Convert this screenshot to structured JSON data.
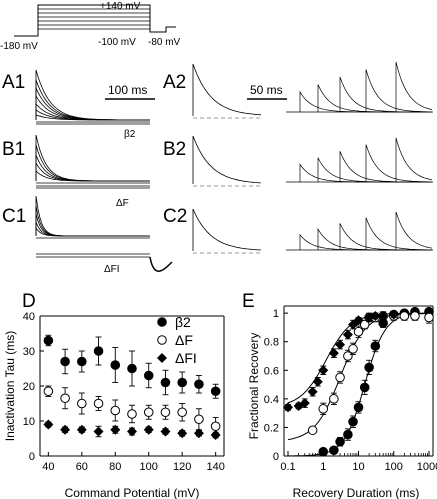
{
  "protocol": {
    "labels": [
      "+140 mV",
      "-180 mV",
      "-100 mV",
      "-80 mV"
    ]
  },
  "traces": {
    "panel_labels": [
      "A1",
      "A2",
      "B1",
      "B2",
      "C1",
      "C2"
    ],
    "scale_bars": {
      "left": "100 ms",
      "right": "50 ms"
    },
    "condition_labels": [
      "β2",
      "ΔF",
      "ΔFI"
    ]
  },
  "colors": {
    "ink": "#000000",
    "dash": "#999999"
  },
  "chart_data": [
    {
      "type": "scatter",
      "panel": "D",
      "xlabel": "Command Potential (mV)",
      "ylabel": "Inactivation Tau (ms)",
      "xlim": [
        35,
        145
      ],
      "ylim": [
        0,
        40
      ],
      "xticks": [
        40,
        60,
        80,
        100,
        120,
        140
      ],
      "yticks": [
        0,
        10,
        20,
        30,
        40
      ],
      "legend_position": "top-right",
      "x": [
        40,
        50,
        60,
        70,
        80,
        90,
        100,
        110,
        120,
        130,
        140
      ],
      "series": [
        {
          "name": "β2",
          "marker": "filled-circle",
          "values": [
            33.0,
            27.0,
            27.0,
            30.0,
            26.0,
            25.0,
            23.0,
            21.0,
            21.0,
            20.5,
            18.5
          ],
          "errors": [
            1.5,
            3.5,
            3.0,
            4.0,
            5.0,
            5.0,
            3.5,
            3.5,
            3.0,
            2.5,
            2.0
          ]
        },
        {
          "name": "ΔF",
          "marker": "open-circle",
          "values": [
            18.5,
            16.5,
            15.0,
            15.0,
            13.0,
            12.0,
            12.5,
            12.5,
            12.5,
            10.5,
            8.5
          ],
          "errors": [
            1.5,
            3.0,
            3.0,
            2.0,
            3.0,
            2.5,
            2.0,
            2.0,
            2.5,
            3.0,
            2.5
          ]
        },
        {
          "name": "ΔFI",
          "marker": "filled-diamond",
          "values": [
            9.0,
            7.5,
            7.5,
            7.0,
            7.5,
            7.0,
            7.5,
            7.0,
            6.5,
            6.5,
            6.0
          ],
          "errors": [
            0.7,
            0.8,
            0.8,
            1.5,
            1.0,
            1.0,
            0.8,
            0.8,
            0.8,
            0.8,
            0.8
          ]
        }
      ]
    },
    {
      "type": "scatter",
      "panel": "E",
      "xlabel": "Recovery Duration (ms)",
      "ylabel": "Fractional Recovery",
      "xscale": "log",
      "xlim": [
        0.1,
        1000
      ],
      "ylim": [
        0,
        1.05
      ],
      "xticks": [
        "0.1",
        "1",
        "10",
        "100",
        "1000"
      ],
      "yticks": [
        0,
        0.2,
        0.4,
        0.6,
        0.8,
        1
      ],
      "series": [
        {
          "name": "β2",
          "marker": "filled-circle",
          "x": [
            1,
            2,
            3,
            5,
            7,
            10,
            15,
            20,
            30,
            50,
            100,
            200,
            400,
            1000
          ],
          "values": [
            0.03,
            0.04,
            0.1,
            0.15,
            0.24,
            0.34,
            0.48,
            0.62,
            0.77,
            0.93,
            0.99,
            1.0,
            1.01,
            1.01
          ],
          "errors": [
            0.01,
            0.02,
            0.03,
            0.04,
            0.04,
            0.04,
            0.05,
            0.05,
            0.04,
            0.03,
            0.02,
            0.02,
            0.02,
            0.02
          ]
        },
        {
          "name": "ΔF",
          "marker": "open-circle",
          "x": [
            0.5,
            1,
            2,
            3,
            5,
            7,
            10,
            15,
            20,
            30,
            50,
            100,
            200,
            400,
            1000
          ],
          "values": [
            0.18,
            0.33,
            0.4,
            0.55,
            0.7,
            0.75,
            0.87,
            0.92,
            0.97,
            0.97,
            0.98,
            0.98,
            0.98,
            0.98,
            0.97
          ],
          "errors": [
            0.02,
            0.04,
            0.04,
            0.04,
            0.04,
            0.04,
            0.04,
            0.03,
            0.03,
            0.03,
            0.03,
            0.03,
            0.03,
            0.03,
            0.04
          ]
        },
        {
          "name": "ΔFI",
          "marker": "filled-diamond",
          "x": [
            0.1,
            0.2,
            0.3,
            0.5,
            0.7,
            1,
            2,
            3,
            5,
            7,
            10,
            20,
            30,
            50,
            100
          ],
          "values": [
            0.34,
            0.35,
            0.37,
            0.45,
            0.52,
            0.6,
            0.72,
            0.78,
            0.85,
            0.92,
            0.95,
            0.97,
            0.98,
            0.98,
            0.99
          ],
          "errors": [
            0.02,
            0.02,
            0.03,
            0.03,
            0.03,
            0.03,
            0.03,
            0.03,
            0.03,
            0.03,
            0.02,
            0.02,
            0.02,
            0.02,
            0.02
          ]
        }
      ],
      "fits": [
        {
          "series": "β2",
          "tau": 15,
          "offset": 0,
          "n": 1.5
        },
        {
          "series": "ΔF",
          "tau": 3,
          "offset": 0.1,
          "n": 1.2
        },
        {
          "series": "ΔFI",
          "tau": 1.2,
          "offset": 0.34,
          "n": 1.2
        }
      ]
    }
  ]
}
